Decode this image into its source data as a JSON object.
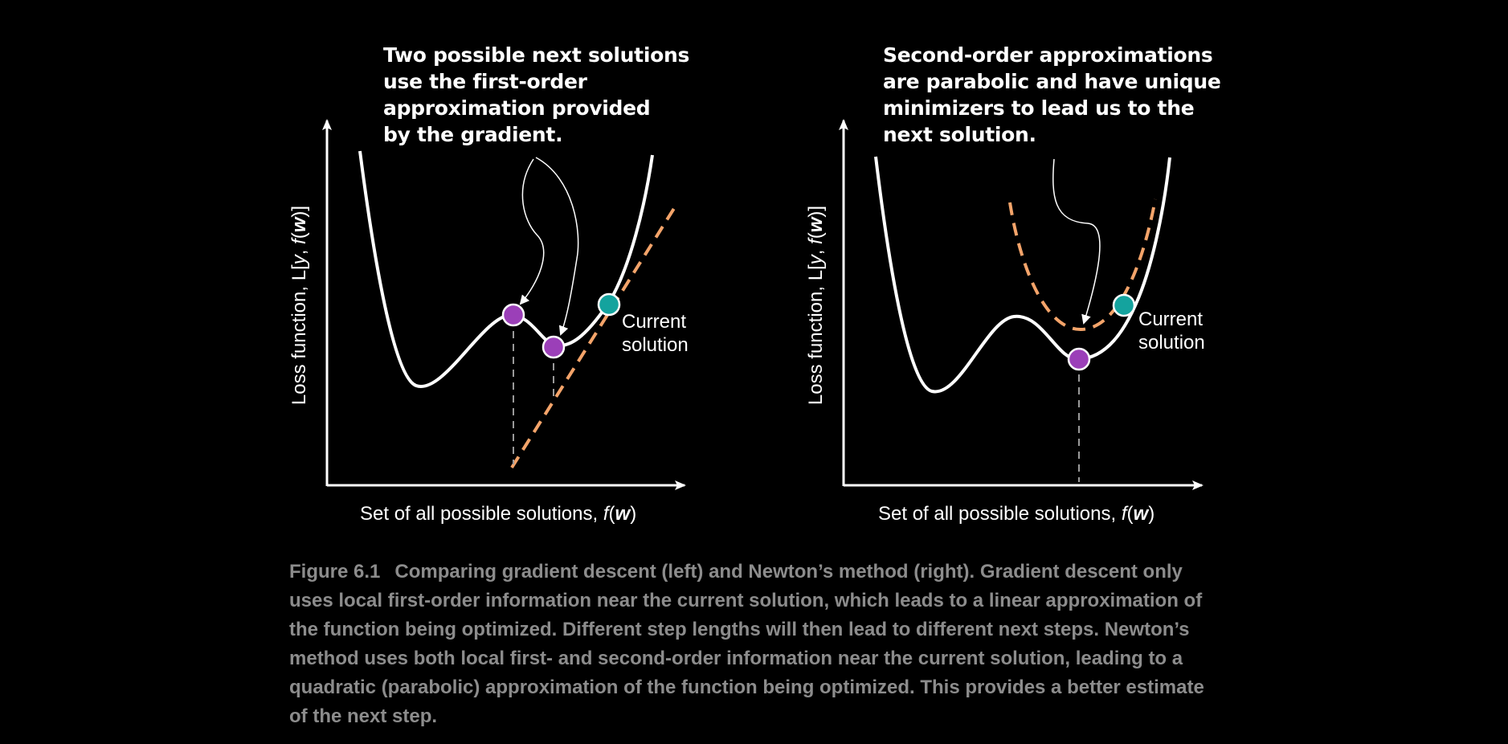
{
  "left_panel": {
    "annotation": "Two possible next solutions\nuse the first-order\napproximation provided\nby the gradient.",
    "y_axis_label": {
      "prefix": "Loss function, L[",
      "y": "y",
      "comma": ", ",
      "f": "f",
      "open": "(",
      "w": "w",
      "close": ")]"
    },
    "x_axis_label": {
      "prefix": "Set of all possible solutions, ",
      "f": "f",
      "open": "(",
      "w": "w",
      "close": ")"
    },
    "current_solution_label": [
      "Current",
      "solution"
    ]
  },
  "right_panel": {
    "annotation": "Second-order approximations\nare parabolic and have unique\nminimizers to lead us to the\nnext solution.",
    "y_axis_label": {
      "prefix": "Loss function, L[",
      "y": "y",
      "comma": ", ",
      "f": "f",
      "open": "(",
      "w": "w",
      "close": ")]"
    },
    "x_axis_label": {
      "prefix": "Set of all possible solutions, ",
      "f": "f",
      "open": "(",
      "w": "w",
      "close": ")"
    },
    "current_solution_label": [
      "Current",
      "solution"
    ]
  },
  "caption": {
    "label": "Figure 6.1",
    "text": "Comparing gradient descent (left) and Newton’s method (right). Gradient descent only uses local first-order information near the current solution, which leads to a linear approximation of the function being optimized. Different step lengths will then lead to different next steps. Newton’s method uses both local first- and second-order information near the current solution, leading to a quadratic (parabolic) approximation of the function being optimized. This provides a better estimate of the next step."
  },
  "colors": {
    "background": "#000000",
    "curve": "#ffffff",
    "approximation": "#f4a46a",
    "next_solution": "#9b3fb8",
    "current_solution": "#14a39e",
    "drop_line": "#9a9a9a",
    "caption_text": "#8c8c8c"
  }
}
